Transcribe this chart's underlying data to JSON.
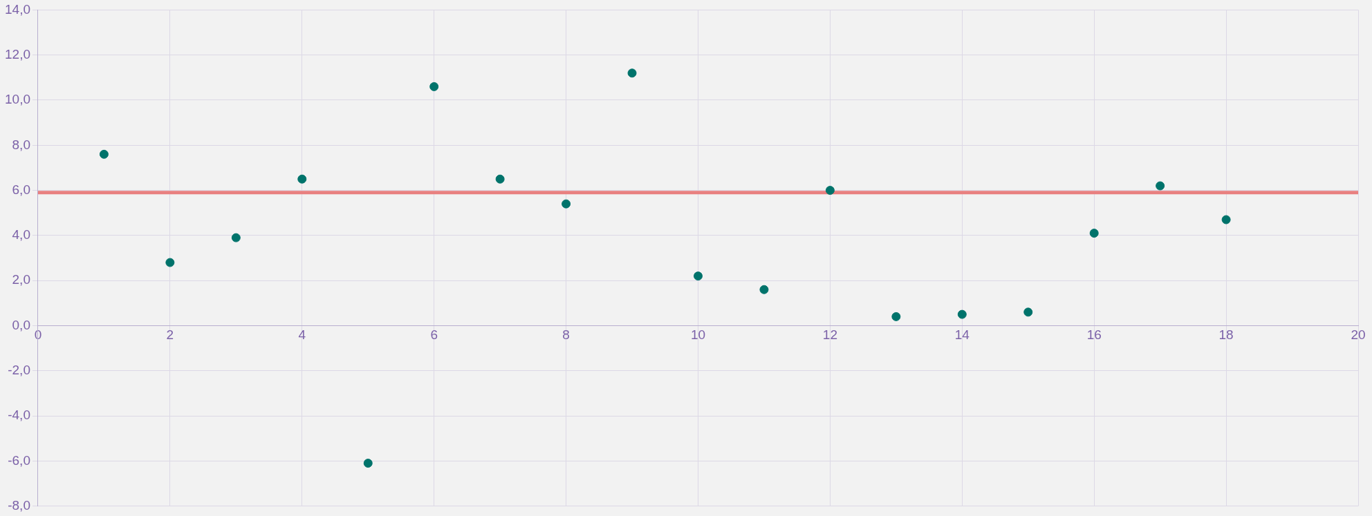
{
  "chart_data": {
    "type": "scatter",
    "x": [
      1,
      2,
      3,
      4,
      5,
      6,
      7,
      8,
      9,
      10,
      11,
      12,
      13,
      14,
      15,
      16,
      17,
      18
    ],
    "series": [
      {
        "color": "#00736b",
        "values": [
          7.6,
          2.8,
          3.9,
          6.5,
          -6.1,
          10.6,
          6.5,
          5.4,
          11.2,
          2.2,
          1.6,
          6.0,
          0.4,
          0.5,
          0.6,
          4.1,
          6.2,
          4.7
        ]
      }
    ],
    "xlim": [
      0,
      20
    ],
    "xticks": [
      0,
      2,
      4,
      6,
      8,
      10,
      12,
      14,
      16,
      18,
      20
    ],
    "ylim": [
      -8,
      14
    ],
    "yticks": [
      {
        "value": -8,
        "label": "-8,0"
      },
      {
        "value": -6,
        "label": "-6,0"
      },
      {
        "value": -4,
        "label": "-4,0"
      },
      {
        "value": -2,
        "label": "-2,0"
      },
      {
        "value": 0,
        "label": "0,0"
      },
      {
        "value": 2,
        "label": "2,0"
      },
      {
        "value": 4,
        "label": "4,0"
      },
      {
        "value": 6,
        "label": "6,0"
      },
      {
        "value": 8,
        "label": "8,0"
      },
      {
        "value": 10,
        "label": "10,0"
      },
      {
        "value": 12,
        "label": "12,0"
      },
      {
        "value": 14,
        "label": "14,0"
      }
    ],
    "ref_lines": [
      {
        "axis": "y",
        "value": 5.9,
        "color": "#e88080"
      }
    ],
    "grid": true,
    "legend": false,
    "marker": "circle"
  }
}
